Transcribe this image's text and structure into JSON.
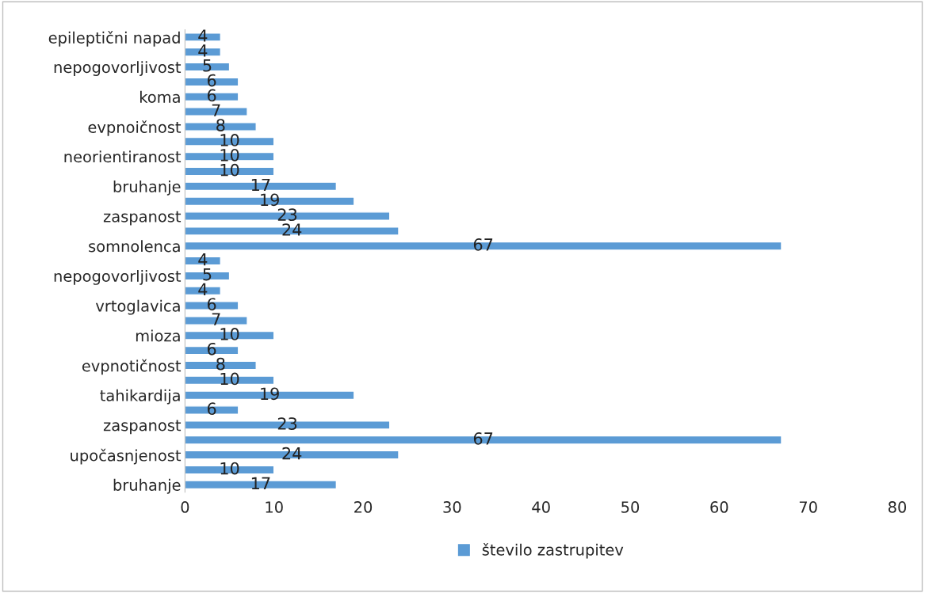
{
  "chart_data": {
    "type": "bar",
    "orientation": "horizontal",
    "categories": [
      "epileptični napad",
      null,
      "nepogovorljivost",
      null,
      "koma",
      null,
      "evpnoičnost",
      null,
      "neorientiranost",
      null,
      "bruhanje",
      null,
      "zaspanost",
      null,
      "somnolenca",
      null,
      "nepogovorljivost",
      null,
      "vrtoglavica",
      null,
      "mioza",
      null,
      "evpnotičnost",
      null,
      "tahikardija",
      null,
      "zaspanost",
      null,
      "upočasnjenost",
      null,
      "bruhanje"
    ],
    "series": [
      {
        "name": "število zastrupitev",
        "color": "#5b9bd5",
        "values": [
          4,
          4,
          5,
          6,
          6,
          7,
          8,
          10,
          10,
          10,
          17,
          19,
          23,
          24,
          67,
          4,
          5,
          4,
          6,
          7,
          10,
          6,
          8,
          10,
          19,
          6,
          23,
          67,
          24,
          10,
          17
        ]
      }
    ],
    "xlim": [
      0,
      80
    ],
    "xticks": [
      0,
      10,
      20,
      30,
      40,
      50,
      60,
      70,
      80
    ],
    "data_labels": true,
    "grid": false,
    "legend": "bottom"
  }
}
